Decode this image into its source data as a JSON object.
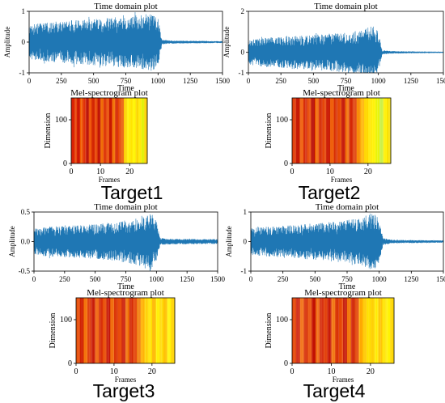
{
  "figure": {
    "panels": [
      {
        "caption": "Target1",
        "time": {
          "title": "Time domain plot",
          "xlabel": "Time",
          "ylabel": "Amplitude",
          "xticks": [
            "0",
            "250",
            "500",
            "750",
            "1000",
            "1250",
            "1500"
          ],
          "yticks": [
            "1",
            "0",
            "-1"
          ]
        },
        "mel": {
          "title": "Mel-spectrogram plot",
          "xlabel": "Frames",
          "ylabel": "Dimension",
          "xticks": [
            "0",
            "10",
            "20"
          ],
          "yticks": [
            "100",
            "0"
          ]
        }
      },
      {
        "caption": "Target2",
        "time": {
          "title": "Time domain plot",
          "xlabel": "Time",
          "ylabel": "Amplitude",
          "xticks": [
            "0",
            "250",
            "500",
            "750",
            "1000",
            "1250",
            "1500"
          ],
          "yticks": [
            "2",
            "0",
            "-1"
          ]
        },
        "mel": {
          "title": "Mel-spectrogram plot",
          "xlabel": "Frames",
          "ylabel": "Dimension",
          "xticks": [
            "0",
            "10",
            "20"
          ],
          "yticks": [
            "100",
            "0"
          ]
        }
      },
      {
        "caption": "Target3",
        "time": {
          "title": "Time domain plot",
          "xlabel": "Time",
          "ylabel": "Amplitude",
          "xticks": [
            "0",
            "250",
            "500",
            "750",
            "1000",
            "1250",
            "1500"
          ],
          "yticks": [
            "0.5",
            "0.0",
            "-0.5"
          ]
        },
        "mel": {
          "title": "Mel-spectrogram plot",
          "xlabel": "Frames",
          "ylabel": "Dimension",
          "xticks": [
            "0",
            "10",
            "20"
          ],
          "yticks": [
            "100",
            "0"
          ]
        }
      },
      {
        "caption": "Target4",
        "time": {
          "title": "Time domain plot",
          "xlabel": "Time",
          "ylabel": "Amplitude",
          "xticks": [
            "0",
            "250",
            "500",
            "750",
            "1000",
            "1250",
            "1500"
          ],
          "yticks": [
            "1",
            "0",
            "-1"
          ]
        },
        "mel": {
          "title": "Mel-spectrogram plot",
          "xlabel": "Frames",
          "ylabel": "Dimension",
          "xticks": [
            "0",
            "10",
            "20"
          ],
          "yticks": [
            "100",
            "0"
          ]
        }
      }
    ]
  },
  "chart_data": [
    {
      "type": "line",
      "panel": "Target1 time",
      "title": "Time domain plot",
      "xlabel": "Time",
      "ylabel": "Amplitude",
      "xlim": [
        0,
        1500
      ],
      "ylim": [
        -1,
        1
      ],
      "color": "#1f77b4",
      "envelope": {
        "x": [
          0,
          100,
          300,
          500,
          700,
          850,
          950,
          1000,
          1030,
          1100,
          1500
        ],
        "amplitude": [
          0.55,
          0.62,
          0.7,
          0.75,
          0.82,
          0.88,
          0.95,
          0.8,
          0.08,
          0.05,
          0.03
        ]
      }
    },
    {
      "type": "heatmap",
      "panel": "Target1 mel",
      "title": "Mel-spectrogram plot",
      "xlabel": "Frames",
      "ylabel": "Dimension",
      "xlim": [
        0,
        26
      ],
      "ylim": [
        0,
        150
      ],
      "colormap": "autumn",
      "column_colors": [
        "#d81b00",
        "#e63d00",
        "#cc1200",
        "#f05a00",
        "#e02b00",
        "#b80a00",
        "#ee4f00",
        "#d42400",
        "#e84400",
        "#c01000",
        "#f06800",
        "#dd3000",
        "#e84a00",
        "#c81800",
        "#f27000",
        "#d62600",
        "#e64000",
        "#ea5a00",
        "#fcd200",
        "#fff000",
        "#ffe600",
        "#fff400",
        "#fcd800",
        "#ffea00",
        "#e0f000",
        "#ffd000"
      ]
    },
    {
      "type": "line",
      "panel": "Target2 time",
      "title": "Time domain plot",
      "xlabel": "Time",
      "ylabel": "Amplitude",
      "xlim": [
        0,
        1500
      ],
      "ylim": [
        -1,
        2
      ],
      "color": "#1f77b4",
      "envelope": {
        "x": [
          0,
          100,
          300,
          500,
          700,
          850,
          950,
          1000,
          1030,
          1100,
          1500
        ],
        "amplitude": [
          0.6,
          0.7,
          0.8,
          0.85,
          0.95,
          1.05,
          1.35,
          1.0,
          0.1,
          0.06,
          0.03
        ]
      }
    },
    {
      "type": "heatmap",
      "panel": "Target2 mel",
      "title": "Mel-spectrogram plot",
      "xlabel": "Frames",
      "ylabel": "Dimension",
      "xlim": [
        0,
        26
      ],
      "ylim": [
        0,
        150
      ],
      "colormap": "autumn",
      "column_colors": [
        "#e23800",
        "#c41400",
        "#ee5600",
        "#d42200",
        "#e84800",
        "#b80a00",
        "#f06400",
        "#d62800",
        "#e44000",
        "#c81600",
        "#ee5800",
        "#d82e00",
        "#e64600",
        "#c41200",
        "#f06a00",
        "#d42400",
        "#e03a00",
        "#f88a00",
        "#ffb400",
        "#ffd800",
        "#ffe800",
        "#fff200",
        "#e8f400",
        "#c8f040",
        "#fff000",
        "#f8e000"
      ]
    },
    {
      "type": "line",
      "panel": "Target3 time",
      "title": "Time domain plot",
      "xlabel": "Time",
      "ylabel": "Amplitude",
      "xlim": [
        0,
        1500
      ],
      "ylim": [
        -0.5,
        0.5
      ],
      "color": "#1f77b4",
      "envelope": {
        "x": [
          0,
          100,
          300,
          500,
          700,
          850,
          950,
          1000,
          1030,
          1100,
          1500
        ],
        "amplitude": [
          0.22,
          0.25,
          0.27,
          0.3,
          0.34,
          0.4,
          0.5,
          0.35,
          0.06,
          0.05,
          0.04
        ]
      }
    },
    {
      "type": "heatmap",
      "panel": "Target3 mel",
      "title": "Mel-spectrogram plot",
      "xlabel": "Frames",
      "ylabel": "Dimension",
      "xlim": [
        0,
        26
      ],
      "ylim": [
        0,
        150
      ],
      "colormap": "autumn",
      "column_colors": [
        "#e84800",
        "#d02000",
        "#f26c00",
        "#dc3200",
        "#c61400",
        "#ee5c00",
        "#d62800",
        "#e84a00",
        "#c41000",
        "#f06600",
        "#da3000",
        "#e64400",
        "#cc1a00",
        "#f06e00",
        "#d42600",
        "#e23e00",
        "#f07800",
        "#ffb000",
        "#ffd000",
        "#ffe400",
        "#ffb800",
        "#fff000",
        "#ffda00",
        "#ffc000",
        "#fff400",
        "#ffd400"
      ]
    },
    {
      "type": "line",
      "panel": "Target4 time",
      "title": "Time domain plot",
      "xlabel": "Time",
      "ylabel": "Amplitude",
      "xlim": [
        0,
        1500
      ],
      "ylim": [
        -1,
        1
      ],
      "color": "#1f77b4",
      "envelope": {
        "x": [
          0,
          100,
          300,
          500,
          700,
          850,
          950,
          1000,
          1030,
          1100,
          1500
        ],
        "amplitude": [
          0.45,
          0.5,
          0.55,
          0.62,
          0.7,
          0.8,
          1.0,
          0.75,
          0.12,
          0.06,
          0.04
        ]
      }
    },
    {
      "type": "heatmap",
      "panel": "Target4 mel",
      "title": "Mel-spectrogram plot",
      "xlabel": "Frames",
      "ylabel": "Dimension",
      "xlim": [
        0,
        26
      ],
      "ylim": [
        0,
        150
      ],
      "colormap": "autumn",
      "column_colors": [
        "#e44200",
        "#cc1800",
        "#f06400",
        "#d62a00",
        "#e84c00",
        "#c21000",
        "#ee5e00",
        "#d42200",
        "#e03800",
        "#c81400",
        "#f06c00",
        "#d82c00",
        "#e64600",
        "#c41200",
        "#f27200",
        "#d02000",
        "#e04000",
        "#ffa800",
        "#ffc800",
        "#ffe000",
        "#ffd000",
        "#ffec00",
        "#ffc400",
        "#ffe400",
        "#fff200",
        "#ffd800"
      ]
    }
  ]
}
